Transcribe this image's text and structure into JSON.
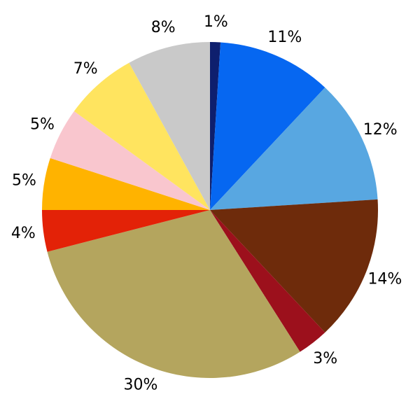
{
  "chart_data": {
    "type": "pie",
    "title": "",
    "legend": "none",
    "background_color": "#ffffff",
    "label_color": "#000000",
    "start": "top",
    "start_angle_deg": 90,
    "direction": "clockwise",
    "labeldistance": 1.12,
    "categories": [
      "1%",
      "11%",
      "12%",
      "14%",
      "3%",
      "30%",
      "4%",
      "5%",
      "5%",
      "7%",
      "8%"
    ],
    "values": [
      1,
      11,
      12,
      14,
      3,
      30,
      4,
      5,
      5,
      7,
      8
    ],
    "slices": [
      {
        "label": "1%",
        "value": 1,
        "color": "#0e1f6e"
      },
      {
        "label": "11%",
        "value": 11,
        "color": "#0667f1"
      },
      {
        "label": "12%",
        "value": 12,
        "color": "#58a7e1"
      },
      {
        "label": "14%",
        "value": 14,
        "color": "#6e2b0b"
      },
      {
        "label": "3%",
        "value": 3,
        "color": "#9c101c"
      },
      {
        "label": "30%",
        "value": 30,
        "color": "#b4a55e"
      },
      {
        "label": "4%",
        "value": 4,
        "color": "#e32207"
      },
      {
        "label": "5%",
        "value": 5,
        "color": "#ffb300"
      },
      {
        "label": "5%",
        "value": 5,
        "color": "#f9c6ce"
      },
      {
        "label": "7%",
        "value": 7,
        "color": "#ffe45f"
      },
      {
        "label": "8%",
        "value": 8,
        "color": "#c9c9c9"
      }
    ]
  }
}
